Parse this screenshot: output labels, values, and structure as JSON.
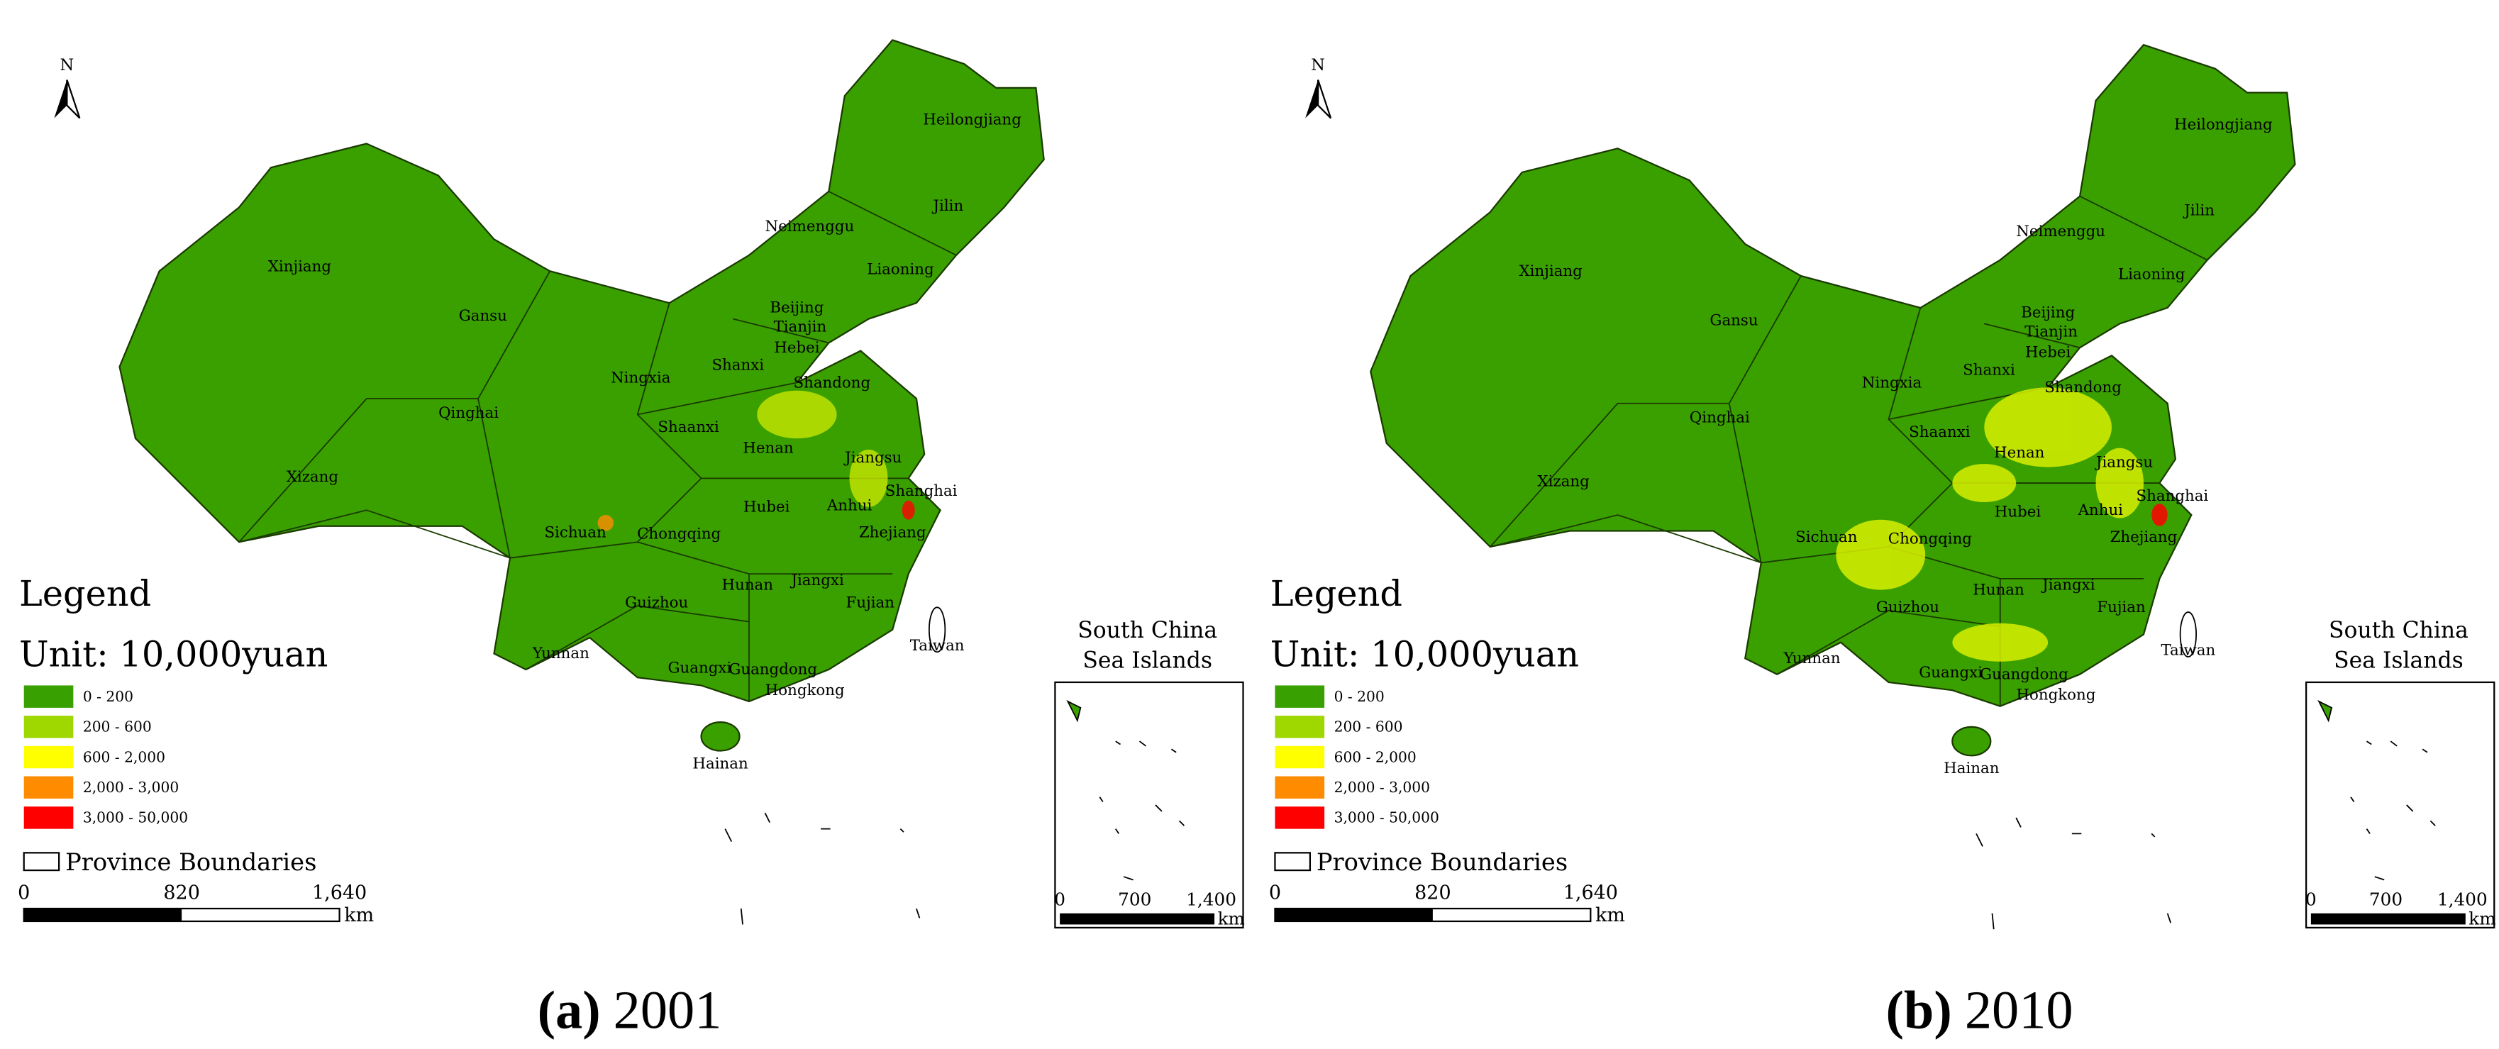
{
  "panels": [
    {
      "north": "N",
      "caption_letter": "(a)",
      "caption_year": "2001",
      "legend_title": "Legend",
      "unit": "Unit: 10,000yuan",
      "legend_items": [
        {
          "label": "0 - 200",
          "color": "#38a000"
        },
        {
          "label": "200 - 600",
          "color": "#9fd800"
        },
        {
          "label": "600 - 2,000",
          "color": "#ffff00"
        },
        {
          "label": "2,000 - 3,000",
          "color": "#ff8c00"
        },
        {
          "label": "3,000 - 50,000",
          "color": "#ff0000"
        }
      ],
      "boundary_label": "Province Boundaries",
      "scale_labels": [
        "0",
        "820",
        "1,640"
      ],
      "scale_unit": "km",
      "inset_title": [
        "South China",
        "Sea Islands"
      ],
      "inset_scale_labels": [
        "0",
        "700",
        "1,400"
      ],
      "inset_scale_unit": "km",
      "provinces": [
        "Heilongjiang",
        "Jilin",
        "Liaoning",
        "Neimenggu",
        "Xinjiang",
        "Gansu",
        "Beijing",
        "Tianjin",
        "Hebei",
        "Ningxia",
        "Shanxi",
        "Shandong",
        "Qinghai",
        "Shaanxi",
        "Henan",
        "Jiangsu",
        "Shanghai",
        "Xizang",
        "Anhui",
        "Hubei",
        "Sichuan",
        "Chongqing",
        "Zhejiang",
        "Hunan",
        "Jiangxi",
        "Fujian",
        "Guizhou",
        "Yunnan",
        "Taiwan",
        "Guangxi",
        "Guangdong",
        "Hongkong",
        "Hainan"
      ]
    },
    {
      "north": "N",
      "caption_letter": "(b)",
      "caption_year": "2010",
      "legend_title": "Legend",
      "unit": "Unit: 10,000yuan",
      "legend_items": [
        {
          "label": "0 - 200",
          "color": "#38a000"
        },
        {
          "label": "200 - 600",
          "color": "#9fd800"
        },
        {
          "label": "600 - 2,000",
          "color": "#ffff00"
        },
        {
          "label": "2,000 - 3,000",
          "color": "#ff8c00"
        },
        {
          "label": "3,000 - 50,000",
          "color": "#ff0000"
        }
      ],
      "boundary_label": "Province Boundaries",
      "scale_labels": [
        "0",
        "820",
        "1,640"
      ],
      "scale_unit": "km",
      "inset_title": [
        "South China",
        "Sea Islands"
      ],
      "inset_scale_labels": [
        "0",
        "700",
        "1,400"
      ],
      "inset_scale_unit": "km",
      "provinces": [
        "Heilongjiang",
        "Jilin",
        "Liaoning",
        "Neimenggu",
        "Xinjiang",
        "Gansu",
        "Beijing",
        "Tianjin",
        "Hebei",
        "Ningxia",
        "Shanxi",
        "Shandong",
        "Qinghai",
        "Shaanxi",
        "Henan",
        "Jiangsu",
        "Shanghai",
        "Xizang",
        "Anhui",
        "Hubei",
        "Sichuan",
        "Chongqing",
        "Zhejiang",
        "Hunan",
        "Jiangxi",
        "Fujian",
        "Guizhou",
        "Yunnan",
        "Taiwan",
        "Guangxi",
        "Guangdong",
        "Hongkong",
        "Hainan"
      ]
    }
  ]
}
